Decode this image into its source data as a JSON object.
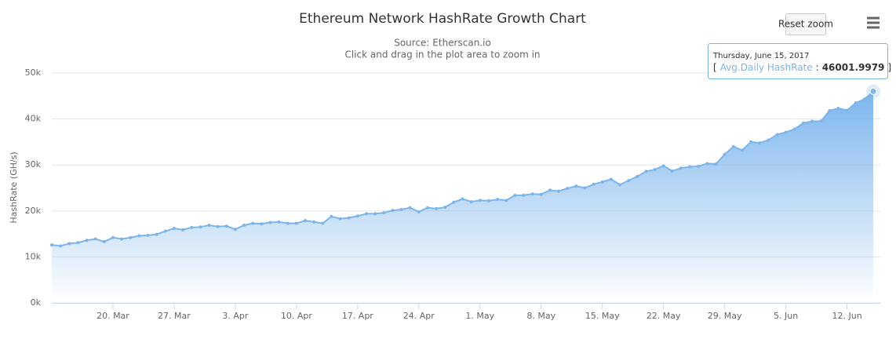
{
  "chart_data": {
    "type": "area",
    "title": "Ethereum Network HashRate Growth Chart",
    "subtitle": [
      "Source: Etherscan.io",
      "Click and drag in the plot area to zoom in"
    ],
    "y_label": "HashRate (GH/s)",
    "ylim": [
      0,
      50000
    ],
    "yticks": [
      {
        "value": 0,
        "label": "0k"
      },
      {
        "value": 10000,
        "label": "10k"
      },
      {
        "value": 20000,
        "label": "20k"
      },
      {
        "value": 30000,
        "label": "30k"
      },
      {
        "value": 40000,
        "label": "40k"
      },
      {
        "value": 50000,
        "label": "50k"
      }
    ],
    "grid": true,
    "categories": [
      null,
      null,
      null,
      null,
      null,
      null,
      null,
      "20. Mar",
      null,
      null,
      null,
      null,
      null,
      null,
      "27. Mar",
      null,
      null,
      null,
      null,
      null,
      null,
      "3. Apr",
      null,
      null,
      null,
      null,
      null,
      null,
      "10. Apr",
      null,
      null,
      null,
      null,
      null,
      null,
      "17. Apr",
      null,
      null,
      null,
      null,
      null,
      null,
      "24. Apr",
      null,
      null,
      null,
      null,
      null,
      null,
      "1. May",
      null,
      null,
      null,
      null,
      null,
      null,
      "8. May",
      null,
      null,
      null,
      null,
      null,
      null,
      "15. May",
      null,
      null,
      null,
      null,
      null,
      null,
      "22. May",
      null,
      null,
      null,
      null,
      null,
      null,
      "29. May",
      null,
      null,
      null,
      null,
      null,
      null,
      "5. Jun",
      null,
      null,
      null,
      null,
      null,
      null,
      "12. Jun",
      null,
      null,
      null
    ],
    "series": [
      {
        "name": "Avg.Daily HashRate",
        "color": "#7cb5ec",
        "values": [
          12600,
          12400,
          12900,
          13100,
          13600,
          13900,
          13300,
          14200,
          13900,
          14200,
          14600,
          14700,
          14900,
          15600,
          16200,
          15900,
          16400,
          16500,
          16900,
          16600,
          16700,
          16000,
          16900,
          17300,
          17200,
          17500,
          17600,
          17300,
          17300,
          17900,
          17600,
          17300,
          18800,
          18300,
          18500,
          18900,
          19400,
          19400,
          19600,
          20100,
          20300,
          20700,
          19800,
          20700,
          20500,
          20800,
          21900,
          22600,
          22000,
          22300,
          22200,
          22500,
          22300,
          23400,
          23400,
          23700,
          23600,
          24500,
          24300,
          24900,
          25400,
          25000,
          25800,
          26300,
          26900,
          25700,
          26600,
          27500,
          28600,
          29000,
          29800,
          28700,
          29300,
          29600,
          29700,
          30300,
          30200,
          32300,
          34000,
          33200,
          35000,
          34800,
          35400,
          36600,
          37100,
          37800,
          39100,
          39500,
          39500,
          41800,
          42300,
          41900,
          43500,
          44300,
          46001.9979
        ]
      }
    ],
    "tooltip": {
      "date": "Thursday, June 15, 2017",
      "open": "[",
      "separator": ":",
      "close": "]",
      "index": 94
    },
    "reset_button": "Reset zoom"
  }
}
